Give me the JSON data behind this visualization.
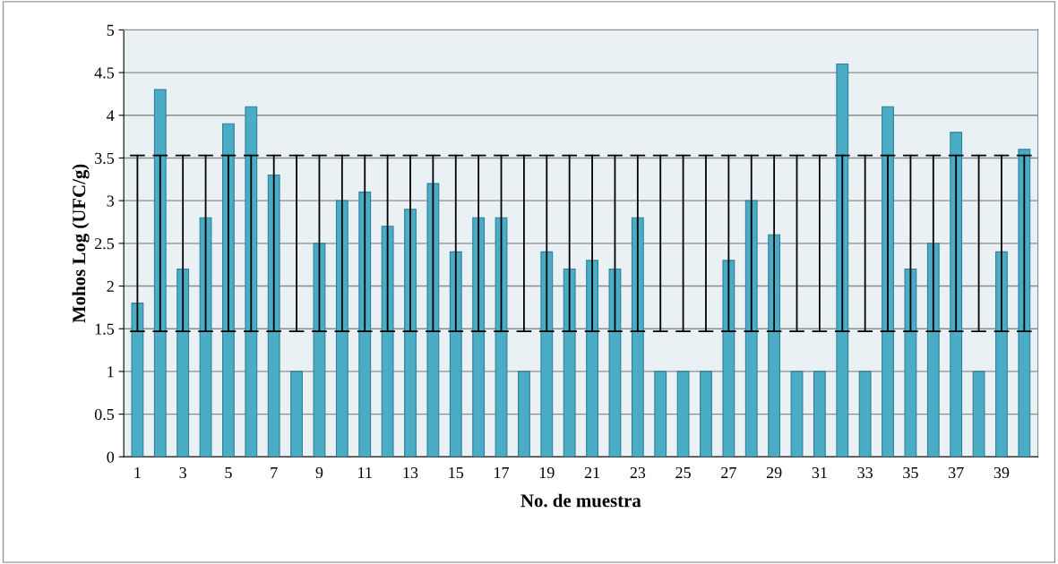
{
  "chart_data": {
    "type": "bar",
    "xlabel": "No. de muestra",
    "ylabel": "Mohos Log (UFC/g)",
    "categories": [
      "1",
      null,
      "3",
      null,
      "5",
      null,
      "7",
      null,
      "9",
      null,
      "11",
      null,
      "13",
      null,
      "15",
      null,
      "17",
      null,
      "19",
      null,
      "21",
      null,
      "23",
      null,
      "25",
      null,
      "27",
      null,
      "29",
      null,
      "31",
      null,
      "33",
      null,
      "35",
      null,
      "37",
      null,
      "39",
      null
    ],
    "values": [
      1.8,
      4.3,
      2.2,
      2.8,
      3.9,
      4.1,
      3.3,
      1.0,
      2.5,
      3.0,
      3.1,
      2.7,
      2.9,
      3.2,
      2.4,
      2.8,
      2.8,
      1.0,
      2.4,
      2.2,
      2.3,
      2.2,
      2.8,
      1.0,
      1.0,
      1.0,
      2.3,
      3.0,
      2.6,
      1.0,
      1.0,
      4.6,
      1.0,
      4.1,
      2.2,
      2.5,
      3.8,
      1.0,
      2.4,
      3.6
    ],
    "errors": [
      [
        1.47,
        3.53
      ],
      [
        1.47,
        3.53
      ],
      [
        1.47,
        3.53
      ],
      [
        1.47,
        3.53
      ],
      [
        1.47,
        3.53
      ],
      [
        1.47,
        3.53
      ],
      [
        1.47,
        3.53
      ],
      [
        1.47,
        3.53
      ],
      [
        1.47,
        3.53
      ],
      [
        1.47,
        3.53
      ],
      [
        1.47,
        3.53
      ],
      [
        1.47,
        3.53
      ],
      [
        1.47,
        3.53
      ],
      [
        1.47,
        3.53
      ],
      [
        1.47,
        3.53
      ],
      [
        1.47,
        3.53
      ],
      [
        1.47,
        3.53
      ],
      [
        1.47,
        3.53
      ],
      [
        1.47,
        3.53
      ],
      [
        1.47,
        3.53
      ],
      [
        1.47,
        3.53
      ],
      [
        1.47,
        3.53
      ],
      [
        1.47,
        3.53
      ],
      [
        1.47,
        3.53
      ],
      [
        1.47,
        3.53
      ],
      [
        1.47,
        3.53
      ],
      [
        1.47,
        3.53
      ],
      [
        1.47,
        3.53
      ],
      [
        1.47,
        3.53
      ],
      [
        1.47,
        3.53
      ],
      [
        1.47,
        3.53
      ],
      [
        1.47,
        3.53
      ],
      [
        1.47,
        3.53
      ],
      [
        1.47,
        3.53
      ],
      [
        1.47,
        3.53
      ],
      [
        1.47,
        3.53
      ],
      [
        1.47,
        3.53
      ],
      [
        1.47,
        3.53
      ],
      [
        1.47,
        3.53
      ],
      [
        1.47,
        3.53
      ]
    ],
    "color": "#4bacc6",
    "ylim": [
      0,
      5
    ],
    "yticks": [
      0,
      0.5,
      1,
      1.5,
      2,
      2.5,
      3,
      3.5,
      4,
      4.5,
      5
    ],
    "grid": "y",
    "legend": false
  }
}
